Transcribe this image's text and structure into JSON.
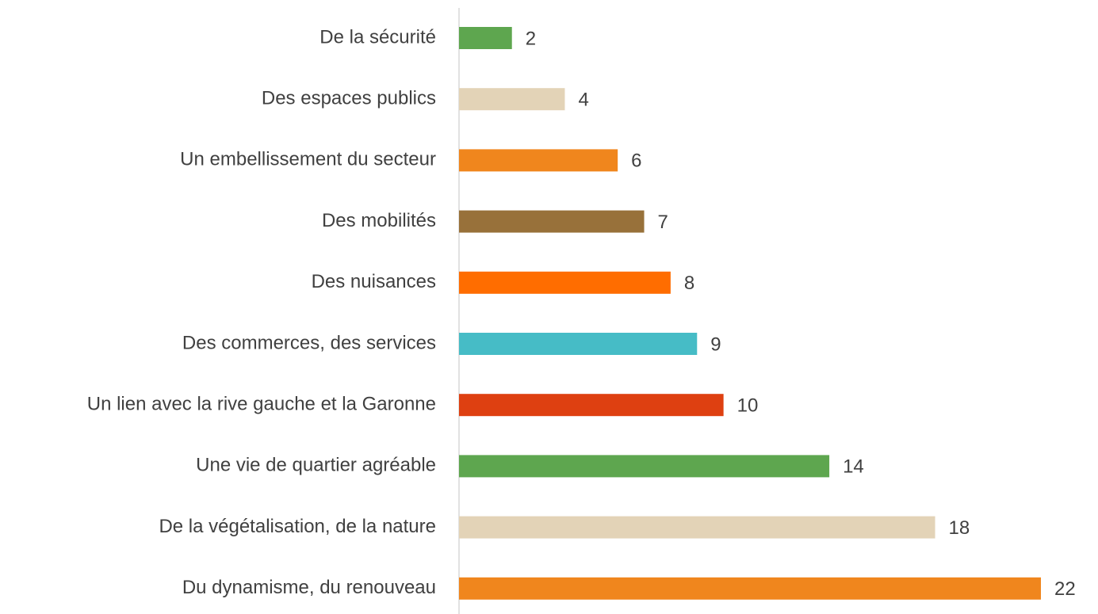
{
  "chart_data": {
    "type": "bar",
    "orientation": "horizontal",
    "categories": [
      "De la sécurité",
      "Des espaces publics",
      "Un embellissement du secteur",
      "Des mobilités",
      "Des nuisances",
      "Des commerces, des services",
      "Un lien avec la rive gauche et la Garonne",
      "Une vie de quartier agréable",
      "De la végétalisation, de la nature",
      "Du dynamisme, du renouveau"
    ],
    "values": [
      2,
      4,
      6,
      7,
      8,
      9,
      10,
      14,
      18,
      22
    ],
    "colors": [
      "#5ea64f",
      "#e3d3b7",
      "#f0861d",
      "#98713a",
      "#ff6d00",
      "#46bcc6",
      "#de4011",
      "#5ea64f",
      "#e3d3b7",
      "#f0861d"
    ],
    "xlim": [
      0,
      22
    ]
  }
}
